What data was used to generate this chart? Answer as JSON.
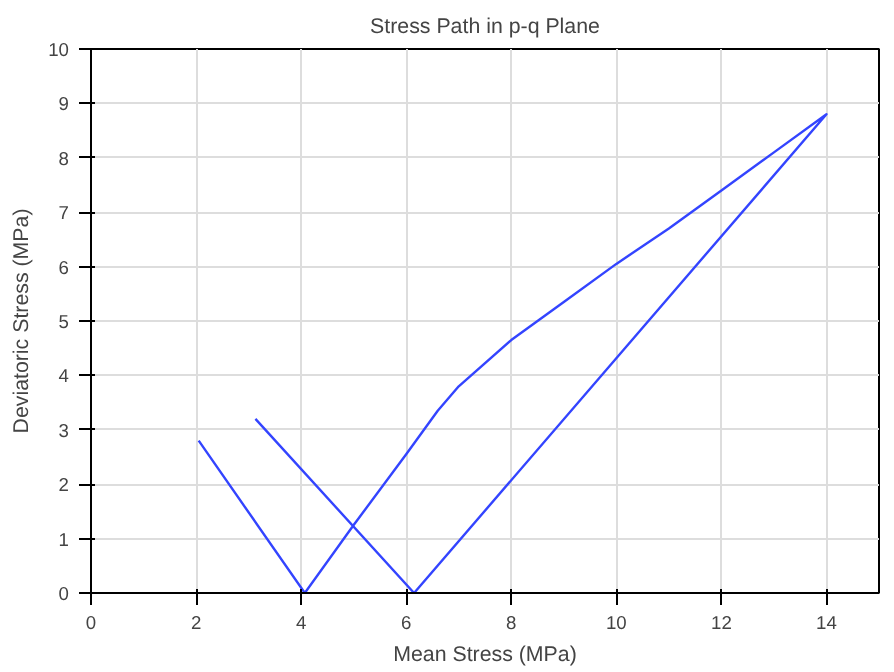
{
  "chart_data": {
    "type": "line",
    "title": "Stress Path in p-q Plane",
    "xlabel": "Mean Stress (MPa)",
    "ylabel": "Deviatoric Stress (MPa)",
    "series": [
      {
        "color": "#3344ff",
        "x": [
          2.05,
          4.07,
          5,
          6,
          6.6,
          7,
          8,
          9,
          10,
          11,
          12,
          13,
          14,
          6.15,
          3.13
        ],
        "values": [
          2.8,
          0,
          1.25,
          2.55,
          3.35,
          3.8,
          4.65,
          5.35,
          6.05,
          6.7,
          7.4,
          8.1,
          8.8,
          0,
          3.2
        ]
      }
    ],
    "xlim": [
      0,
      15
    ],
    "ylim": [
      0,
      10
    ],
    "xticks": [
      0,
      2,
      4,
      6,
      8,
      10,
      12,
      14
    ],
    "yticks": [
      0,
      1,
      2,
      3,
      4,
      5,
      6,
      7,
      8,
      9,
      10
    ],
    "grid": true,
    "marker": "none",
    "line_style": "solid"
  }
}
